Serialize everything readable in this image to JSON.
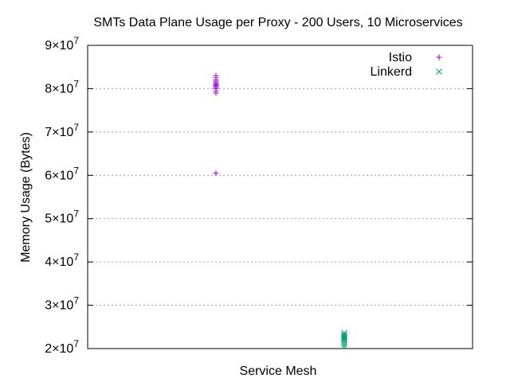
{
  "chart_data": {
    "type": "scatter",
    "title": "SMTs Data Plane Usage per Proxy - 200 Users, 10 Microservices",
    "xlabel": "Service Mesh",
    "ylabel": "Memory Usage (Bytes)",
    "ylim": [
      20000000,
      90000000
    ],
    "yticks": [
      {
        "value": 20000000,
        "mantissa": "2",
        "exp": "7"
      },
      {
        "value": 30000000,
        "mantissa": "3",
        "exp": "7"
      },
      {
        "value": 40000000,
        "mantissa": "4",
        "exp": "7"
      },
      {
        "value": 50000000,
        "mantissa": "5",
        "exp": "7"
      },
      {
        "value": 60000000,
        "mantissa": "6",
        "exp": "7"
      },
      {
        "value": 70000000,
        "mantissa": "7",
        "exp": "7"
      },
      {
        "value": 80000000,
        "mantissa": "8",
        "exp": "7"
      },
      {
        "value": 90000000,
        "mantissa": "9",
        "exp": "7"
      }
    ],
    "xlim": [
      0,
      3
    ],
    "grid": {
      "horizontal": true,
      "vertical": false
    },
    "legend_position": "top-right",
    "series": [
      {
        "name": "Istio",
        "marker": "plus",
        "color": "#9400d3",
        "x": 1,
        "values": [
          60500000,
          79000000,
          79500000,
          80000000,
          80300000,
          80600000,
          80800000,
          81000000,
          81300000,
          81600000,
          82000000,
          82500000,
          83000000
        ]
      },
      {
        "name": "Linkerd",
        "marker": "cross",
        "color": "#009e73",
        "x": 2,
        "values": [
          20500000,
          21000000,
          21500000,
          22000000,
          22300000,
          22600000,
          22900000,
          23200000,
          23600000
        ]
      }
    ]
  }
}
